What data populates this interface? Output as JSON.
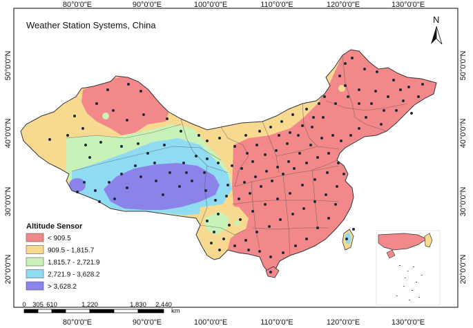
{
  "title": "Weather Station Systems, China",
  "north_arrow_label": "N",
  "top_lon_labels": [
    "80°0'0\"E",
    "90°0'0\"E",
    "100°0'0\"E",
    "110°0'0\"E",
    "120°0'0\"E",
    "130°0'0\"E"
  ],
  "bottom_lon_labels": [
    "80°0'0\"E",
    "90°0'0\"E",
    "100°0'0\"E",
    "110°0'0\"E",
    "120°0'0\"E",
    "130°0'0\"E"
  ],
  "left_lat_labels": [
    "50°0'0\"N",
    "40°0'0\"N",
    "30°0'0\"N",
    "20°0'0\"N"
  ],
  "right_lat_labels": [
    "50°0'0\"N",
    "40°0'0\"N",
    "30°0'0\"N",
    "20°0'0\"N"
  ],
  "legend": {
    "title": "Altitude Sensor",
    "items": [
      {
        "label": "< 909.5",
        "color": "#f2888a"
      },
      {
        "label": "909.5 - 1,815.7",
        "color": "#f7d98f"
      },
      {
        "label": "1,815.7 - 2,721.9",
        "color": "#c9f2b8"
      },
      {
        "label": "2,721.9 - 3,628.2",
        "color": "#8fdcf2"
      },
      {
        "label": "> 3,628.2",
        "color": "#8b83ea"
      }
    ]
  },
  "scale_bar": {
    "ticks": [
      "0",
      "305",
      "610",
      "1,220",
      "1,830",
      "2,440"
    ],
    "unit": "km"
  },
  "colors": {
    "boundary": "#333333",
    "station": "#1f2a3a",
    "frame": "#000000"
  }
}
